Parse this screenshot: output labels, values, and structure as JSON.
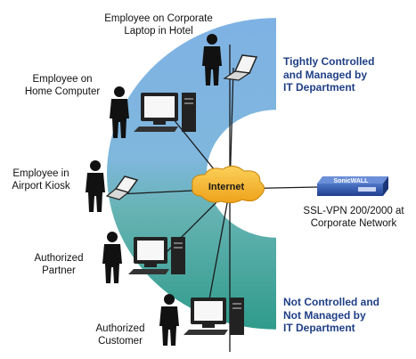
{
  "nodes": {
    "laptop_hotel": "Employee on Corporate\nLaptop in Hotel",
    "home_computer": "Employee on\nHome Computer",
    "airport_kiosk": "Employee in\nAirport Kiosk",
    "partner": "Authorized\nPartner",
    "customer": "Authorized\nCustomer"
  },
  "internet_label": "Internet",
  "device": {
    "brand": "SonicWALL",
    "caption": "SSL-VPN 200/2000 at\nCorporate Network"
  },
  "zones": {
    "controlled": "Tightly Controlled\nand Managed by\nIT Department",
    "uncontrolled": "Not Controlled and\nNot Managed by\nIT Department"
  },
  "colors": {
    "controlled_band": "#6fa6dc",
    "uncontrolled_band": "#2f9b8b",
    "cloud": "#f6b324",
    "device": "#2850a8",
    "zone_text": "#1f3f86"
  }
}
